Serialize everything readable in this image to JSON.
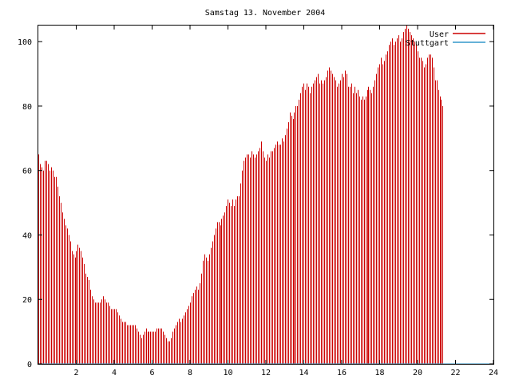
{
  "chart_data": {
    "type": "bar",
    "title": "Samstag 13. November 2004",
    "xlabel": "",
    "ylabel": "",
    "xlim": [
      0,
      24
    ],
    "ylim": [
      0,
      105
    ],
    "x_ticks": [
      2,
      4,
      6,
      8,
      10,
      12,
      14,
      16,
      18,
      20,
      22,
      24
    ],
    "y_ticks": [
      0,
      20,
      40,
      60,
      80,
      100
    ],
    "grid": false,
    "legend_position": "top-right",
    "series": [
      {
        "name": "User",
        "color": "#cc0000",
        "x_step_hours": 0.0833,
        "values": [
          65,
          62,
          61,
          60,
          63,
          63,
          62,
          60,
          61,
          60,
          58,
          58,
          55,
          52,
          50,
          47,
          45,
          43,
          42,
          40,
          38,
          35,
          34,
          33,
          35,
          37,
          36,
          35,
          33,
          31,
          28,
          27,
          26,
          23,
          21,
          20,
          19,
          19,
          19,
          19,
          20,
          21,
          20,
          19,
          19,
          18,
          17,
          17,
          17,
          17,
          16,
          15,
          14,
          13,
          13,
          13,
          12,
          12,
          12,
          12,
          12,
          12,
          11,
          10,
          9,
          8,
          9,
          10,
          11,
          10,
          10,
          10,
          10,
          10,
          10,
          11,
          11,
          11,
          11,
          10,
          9,
          8,
          7,
          7,
          8,
          10,
          11,
          12,
          13,
          14,
          13,
          14,
          15,
          16,
          17,
          18,
          19,
          21,
          22,
          23,
          24,
          23,
          25,
          28,
          32,
          34,
          33,
          32,
          34,
          36,
          38,
          40,
          42,
          44,
          44,
          43,
          45,
          46,
          47,
          49,
          51,
          50,
          49,
          51,
          49,
          51,
          52,
          52,
          56,
          60,
          63,
          64,
          65,
          65,
          64,
          66,
          65,
          64,
          65,
          66,
          67,
          69,
          66,
          64,
          63,
          65,
          64,
          66,
          66,
          67,
          68,
          69,
          68,
          68,
          70,
          69,
          71,
          73,
          75,
          78,
          77,
          76,
          78,
          80,
          80,
          82,
          84,
          86,
          87,
          85,
          87,
          86,
          84,
          86,
          87,
          88,
          89,
          90,
          87,
          88,
          87,
          88,
          89,
          91,
          92,
          91,
          90,
          89,
          88,
          86,
          87,
          88,
          90,
          89,
          91,
          90,
          86,
          86,
          87,
          84,
          86,
          84,
          85,
          83,
          82,
          83,
          82,
          83,
          85,
          86,
          85,
          84,
          86,
          88,
          90,
          92,
          93,
          95,
          93,
          94,
          96,
          97,
          99,
          100,
          101,
          99,
          100,
          101,
          102,
          100,
          101,
          103,
          104,
          105,
          104,
          103,
          102,
          101,
          100,
          99,
          97,
          95,
          95,
          94,
          92,
          93,
          95,
          96,
          96,
          95,
          92,
          88,
          88,
          85,
          83,
          82,
          80
        ]
      },
      {
        "name": "Stuttgart",
        "color": "#3399cc",
        "x_step_hours": 0.0833,
        "values": [
          0
        ]
      }
    ]
  }
}
